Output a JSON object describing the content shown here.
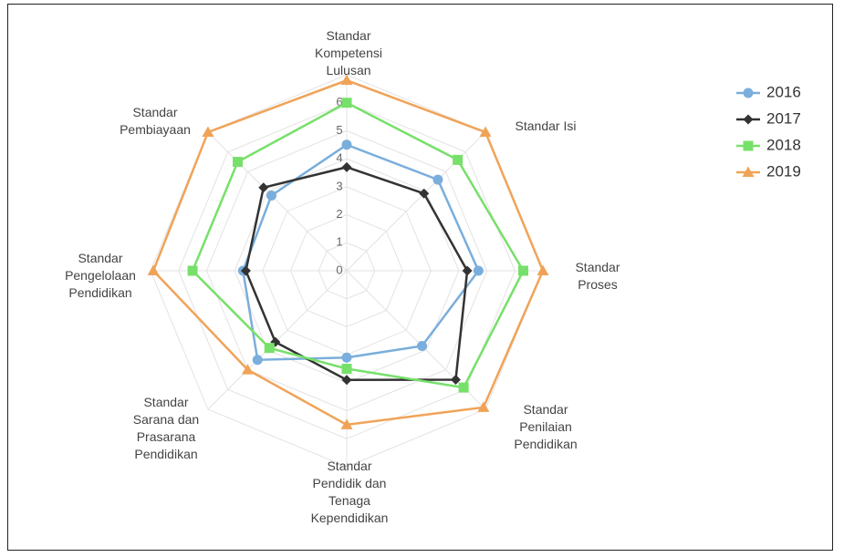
{
  "chart_data": {
    "type": "radar",
    "categories": [
      "Standar Kompetensi Lulusan",
      "Standar Isi",
      "Standar Proses",
      "Standar Penilaian Pendidikan",
      "Standar Pendidik dan Tenaga Kependidikan",
      "Standar Sarana dan Prasarana Pendidikan",
      "Standar Pengelolaan Pendidikan",
      "Standar Pembiayaan"
    ],
    "series": [
      {
        "name": "2016",
        "color": "#7aaedc",
        "marker": "circle",
        "values": [
          4.5,
          4.6,
          4.7,
          3.8,
          3.1,
          4.5,
          3.7,
          3.8
        ]
      },
      {
        "name": "2017",
        "color": "#333333",
        "marker": "diamond",
        "values": [
          3.7,
          3.9,
          4.3,
          5.5,
          3.9,
          3.6,
          3.6,
          4.2
        ]
      },
      {
        "name": "2018",
        "color": "#77e06a",
        "marker": "square",
        "values": [
          6.0,
          5.6,
          6.3,
          5.9,
          3.5,
          3.9,
          5.5,
          5.5
        ]
      },
      {
        "name": "2019",
        "color": "#f0a358",
        "marker": "triangle",
        "values": [
          6.8,
          7.0,
          7.0,
          6.9,
          5.5,
          5.0,
          6.9,
          7.0
        ]
      }
    ],
    "rlim": [
      0,
      7
    ],
    "rticks": [
      0,
      1,
      2,
      3,
      4,
      5,
      6
    ],
    "grid": true,
    "legend": "upper right"
  }
}
